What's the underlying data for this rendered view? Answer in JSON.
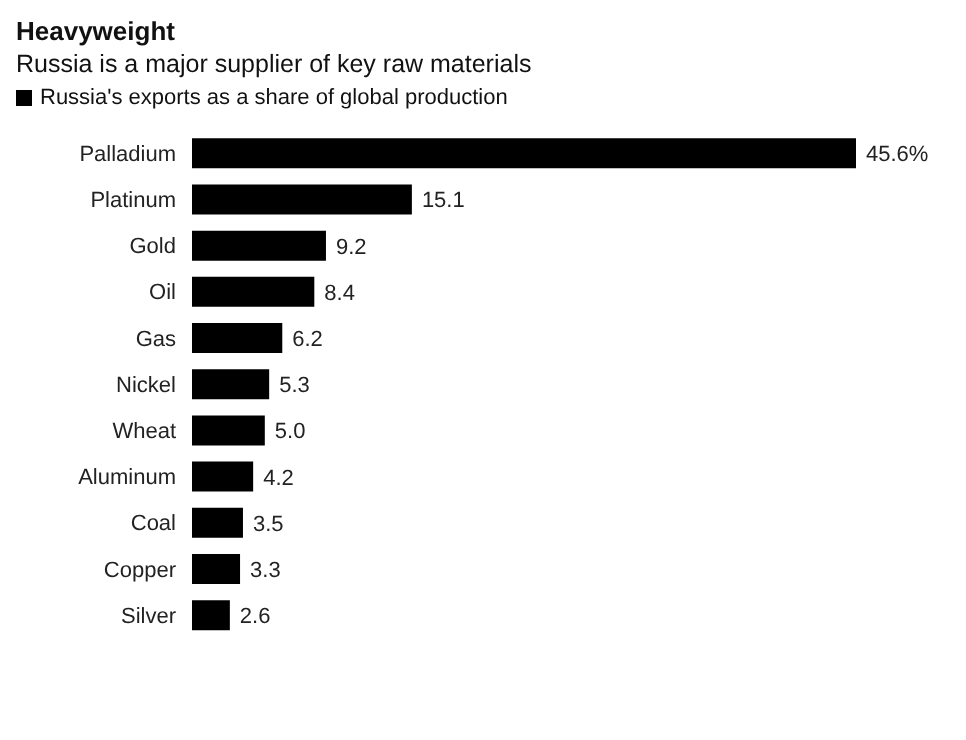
{
  "chart_data": {
    "type": "bar",
    "orientation": "horizontal",
    "relative": false,
    "title": "Heavyweight",
    "subtitle": "Russia is a major supplier of key raw materials",
    "categories": [
      "Palladium",
      "Platinum",
      "Gold",
      "Oil",
      "Gas",
      "Nickel",
      "Wheat",
      "Aluminum",
      "Coal",
      "Copper",
      "Silver"
    ],
    "series": [
      {
        "name": "Russia's exports as a share of global production",
        "color": "#000000",
        "values": [
          45.6,
          15.1,
          9.2,
          8.4,
          6.2,
          5.3,
          5.0,
          4.2,
          3.5,
          3.3,
          2.6
        ],
        "value_labels": [
          "45.6%",
          "15.1",
          "9.2",
          "8.4",
          "6.2",
          "5.3",
          "5.0",
          "4.2",
          "3.5",
          "3.3",
          "2.6"
        ]
      }
    ],
    "legend": "top left",
    "grid": false
  }
}
